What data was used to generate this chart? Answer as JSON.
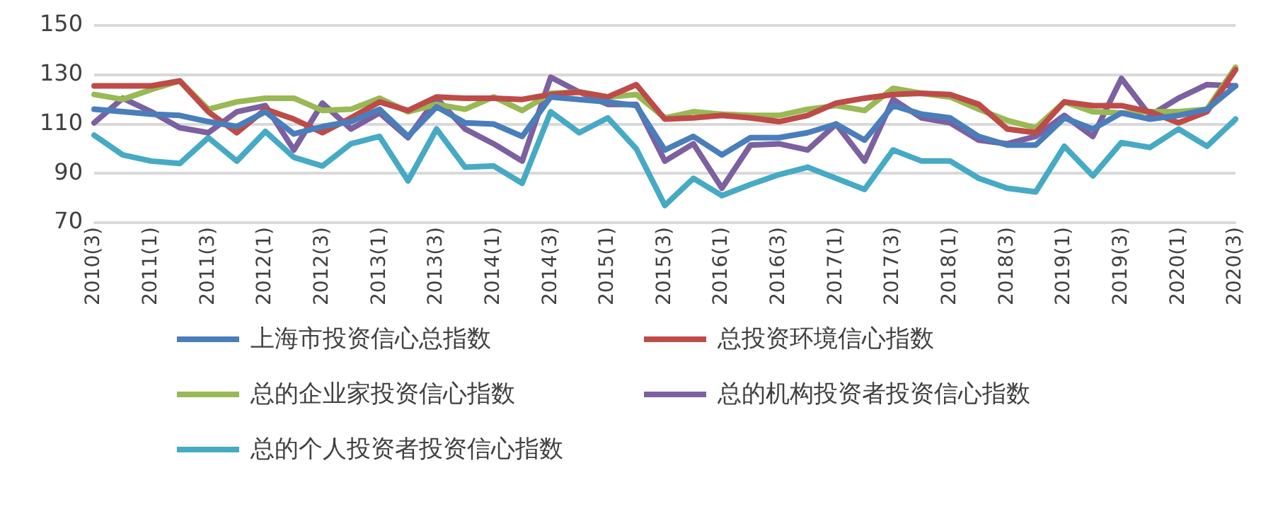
{
  "chart_data": {
    "type": "line",
    "categories": [
      "2010(3)",
      null,
      "2011(1)",
      null,
      "2011(3)",
      null,
      "2012(1)",
      null,
      "2012(3)",
      null,
      "2013(1)",
      null,
      "2013(3)",
      null,
      "2014(1)",
      null,
      "2014(3)",
      null,
      "2015(1)",
      null,
      "2015(3)",
      null,
      "2016(1)",
      null,
      "2016(3)",
      null,
      "2017(1)",
      null,
      "2017(3)",
      null,
      "2018(1)",
      null,
      "2018(3)",
      null,
      "2019(1)",
      null,
      "2019(3)",
      null,
      "2020(1)",
      null,
      "2020(3)"
    ],
    "series": [
      {
        "name": "上海市投资信心总指数",
        "color": "#4a7ebb",
        "values": [
          116,
          115,
          114,
          113.5,
          111,
          109,
          115,
          106,
          109,
          111,
          116,
          105,
          117,
          110.5,
          110,
          105,
          121,
          120,
          119,
          117.5,
          99.5,
          105,
          97.5,
          104.5,
          104.5,
          106.5,
          110,
          103.5,
          117.5,
          114,
          112.5,
          105,
          101.5,
          101.5,
          112.5,
          108,
          114.5,
          112,
          113.5,
          116,
          125.5
        ]
      },
      {
        "name": "总投资环境信心指数",
        "color": "#be4b48",
        "values": [
          125.5,
          125.5,
          125.5,
          127.5,
          115,
          106.5,
          116,
          112,
          106.5,
          112.5,
          119,
          115.5,
          121,
          120.5,
          120.5,
          120,
          122,
          123,
          121,
          126,
          112,
          112.5,
          113.5,
          112.5,
          111,
          113.5,
          118.5,
          120.5,
          122,
          122.5,
          122,
          118,
          108,
          106.5,
          119,
          117.5,
          117.5,
          115,
          110.5,
          115,
          132
        ]
      },
      {
        "name": "总的企业家投资信心指数",
        "color": "#98b954",
        "values": [
          122,
          120,
          124,
          127.5,
          116,
          119,
          120.5,
          120.5,
          115.5,
          116,
          120.5,
          115,
          118,
          116,
          121,
          115.5,
          122.5,
          123,
          121,
          122,
          112.5,
          115,
          114,
          113.5,
          113.5,
          116,
          117.5,
          115.5,
          124.5,
          122.5,
          121,
          116,
          111.5,
          108.5,
          119,
          115,
          114.5,
          115,
          115,
          116,
          133
        ]
      },
      {
        "name": "总的机构投资者投资信心指数",
        "color": "#7d60a0",
        "values": [
          110.5,
          120.5,
          115,
          108.5,
          106.5,
          115,
          117.5,
          99.5,
          118.5,
          108,
          114.5,
          104.5,
          120.5,
          108,
          102,
          95,
          129,
          123,
          118,
          118,
          95,
          102,
          84,
          101.5,
          102,
          99.5,
          110,
          95,
          120,
          112.5,
          110.5,
          103.5,
          102,
          105,
          113.5,
          105,
          128.5,
          113.5,
          120.5,
          126,
          125.5
        ]
      },
      {
        "name": "总的个人投资者投资信心指数",
        "color": "#46aac5",
        "values": [
          105.5,
          97.5,
          95,
          94,
          104.5,
          95,
          107,
          96.5,
          93,
          102,
          105,
          87,
          108,
          92.5,
          93,
          86,
          115,
          106.5,
          112.5,
          100,
          77,
          88,
          81,
          85.5,
          89.5,
          92.5,
          88,
          83.5,
          99.5,
          95,
          95,
          88,
          84,
          82.5,
          101,
          89,
          102.5,
          100.5,
          108,
          101,
          112
        ]
      }
    ],
    "ylim": [
      70,
      150
    ],
    "yticks": [
      70,
      90,
      110,
      130,
      150
    ],
    "grid": "y",
    "legend": "bottom",
    "marker": "none",
    "line_style": "solid"
  }
}
